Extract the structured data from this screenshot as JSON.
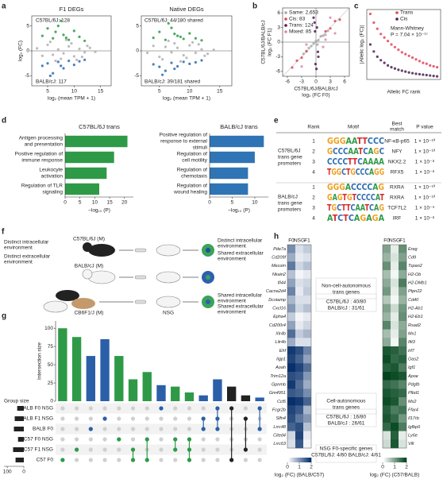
{
  "panel_labels": [
    "a",
    "b",
    "c",
    "d",
    "e",
    "f",
    "g",
    "h"
  ],
  "chart_data": [
    {
      "type": "scatter",
      "title": "F1 DEGs",
      "xlabel": "log₂ (mean TPM + 1)",
      "ylabel": "log₂ (FC)",
      "annotations": [
        "C57BL/6J: 128",
        "BALB/cJ: 117"
      ],
      "xlim": [
        2,
        17
      ],
      "xticks": [
        5,
        10,
        15
      ],
      "ylim": [
        -7,
        7
      ],
      "yticks": [
        -5,
        0,
        5
      ],
      "zero_lines": true,
      "series": [
        {
          "color": "#b0b0b0",
          "x": [
            3,
            4,
            5,
            6,
            7,
            8,
            9,
            10,
            11,
            12,
            13,
            14,
            5.5,
            7.5,
            9.5,
            11.5,
            6.5,
            8.5,
            10.5,
            12.5
          ],
          "values": [
            0.5,
            -1,
            1.2,
            -0.8,
            0.3,
            -0.5,
            0.9,
            -1.1,
            0.4,
            -0.3,
            0.6,
            -0.2,
            1.8,
            -1.6,
            1.5,
            -1.2,
            -2,
            2.2,
            -1.8,
            1
          ]
        },
        {
          "color": "#2e9a47",
          "x": [
            4,
            5,
            6,
            7,
            8,
            9,
            10,
            11,
            12,
            6.5,
            8.5,
            7.5
          ],
          "values": [
            3,
            4.5,
            2.5,
            5,
            3.2,
            2.2,
            4,
            2.8,
            2,
            3.8,
            2.6,
            6
          ]
        },
        {
          "color": "#2b6cb0",
          "x": [
            4,
            5,
            6,
            7,
            8,
            9,
            10,
            11,
            12,
            5.5,
            7.5
          ],
          "values": [
            -3,
            -2.5,
            -4.5,
            -2.2,
            -3.5,
            -2,
            -2.8,
            -2.1,
            -1.8,
            -5,
            -3
          ]
        }
      ]
    },
    {
      "type": "scatter",
      "title": "Native DEGs",
      "xlabel": "log₂ (mean TPM + 1)",
      "annotations": [
        "C57BL/6J: 44/180 shared",
        "BALB/cJ: 39/181 shared"
      ],
      "xlim": [
        2,
        17
      ],
      "xticks": [
        5,
        10,
        15
      ],
      "ylim": [
        -7,
        7
      ],
      "yticks": [
        -5,
        0,
        5
      ],
      "zero_lines": true,
      "series": [
        {
          "color": "#b0b0b0",
          "x": [
            3,
            4,
            5,
            6,
            7,
            8,
            9,
            10,
            11,
            12,
            13,
            14,
            5.5,
            7.5,
            9.5,
            11.5,
            6.5,
            8.5,
            10.5,
            12.5
          ],
          "values": [
            -0.4,
            1,
            -1.2,
            0.8,
            -0.3,
            0.6,
            -0.9,
            1.1,
            -0.4,
            0.3,
            -0.6,
            0.2,
            -1.7,
            1.5,
            -1.4,
            1.3,
            2,
            -2.1,
            1.7,
            -1
          ]
        },
        {
          "color": "#2e9a47",
          "x": [
            4,
            5,
            6,
            7,
            8,
            9,
            10,
            11,
            12,
            6.5,
            8.5,
            7.5
          ],
          "values": [
            2.6,
            3.8,
            2.2,
            4.6,
            3,
            2.4,
            3.5,
            2.5,
            2.1,
            5.5,
            2.8,
            3.4
          ]
        },
        {
          "color": "#2b6cb0",
          "x": [
            4,
            5,
            6,
            7,
            8,
            9,
            10,
            11,
            12,
            5.5,
            7.5
          ],
          "values": [
            -2.7,
            -3.2,
            -4,
            -2.4,
            -3.1,
            -2.2,
            -2.6,
            -2.3,
            -1.9,
            -4.8,
            -3.6
          ]
        }
      ]
    },
    {
      "type": "scatter",
      "xlabel": [
        "C57BL/6J/BALB/cJ",
        "log₂ (FC F0)"
      ],
      "ylabel": [
        "C57BL/6J/BALB/cJ",
        "log₂ (FC F1)"
      ],
      "xlim": [
        -7,
        7
      ],
      "xticks": [
        -6,
        -3,
        0,
        3,
        6
      ],
      "ylim": [
        -7,
        7
      ],
      "yticks": [
        -6,
        -3,
        0,
        3,
        6
      ],
      "zero_lines": true,
      "diagonal": true,
      "series": [
        {
          "name": "Same: 2,653",
          "color": "#a8a8a8",
          "x": [
            -1,
            0.5,
            1,
            -0.5,
            2,
            -2,
            0,
            1.5,
            -1.5,
            0.3,
            2.5,
            -2.6
          ],
          "values": [
            -0.8,
            0.4,
            1.2,
            -0.3,
            1.5,
            -1.8,
            0.2,
            1.3,
            -1.2,
            -0.5,
            2.3,
            -2.4
          ]
        },
        {
          "name": "Cis: 83",
          "color": "#e0475b",
          "x": [
            2,
            3,
            4,
            -2,
            -3,
            -4,
            5,
            -5
          ],
          "values": [
            2.2,
            2.8,
            4.3,
            -1.9,
            -3.2,
            -3.8,
            4.6,
            -5.2
          ]
        },
        {
          "name": "Trans: 124",
          "color": "#4b1f4f",
          "x": [
            0.2,
            -0.3,
            0.5,
            -0.1,
            0.4,
            -0.5,
            0.1,
            -0.2
          ],
          "values": [
            3,
            4,
            -3,
            -4.5,
            -2,
            5,
            -5.5,
            2.2
          ]
        },
        {
          "name": "Mixed: 85",
          "color": "#d98aa8",
          "x": [
            2,
            -2,
            3,
            -3,
            1.5,
            4
          ],
          "values": [
            0.5,
            -0.5,
            5,
            -5,
            -1,
            1.8
          ]
        }
      ]
    },
    {
      "type": "scatter",
      "xlabel": "Allelic FC rank",
      "ylabel": "|Allelic log₂ (FC)|",
      "annotations": [
        "Mann-Whitney",
        "P = 7.04 × 10⁻¹⁷"
      ],
      "xlim": [
        0,
        21
      ],
      "ylim": [
        0,
        8
      ],
      "series": [
        {
          "name": "Trans",
          "color": "#e0475b",
          "x": [
            1,
            2,
            3,
            4,
            5,
            6,
            7,
            8,
            9,
            10,
            11,
            12,
            13,
            14,
            15,
            16,
            17,
            18,
            19,
            20
          ],
          "values": [
            7.5,
            6.5,
            5.8,
            5.2,
            4.8,
            4.4,
            4,
            3.7,
            3.4,
            3.1,
            2.9,
            2.7,
            2.5,
            2.3,
            2.1,
            1.9,
            1.8,
            1.6,
            1.5,
            1.4
          ]
        },
        {
          "name": "Cis",
          "color": "#4b1f4f",
          "x": [
            1,
            2,
            3,
            4,
            5,
            6,
            7,
            8,
            9,
            10,
            11,
            12,
            13,
            14,
            15,
            16,
            17,
            18,
            19,
            20
          ],
          "values": [
            4,
            3.2,
            2.6,
            2.2,
            1.9,
            1.6,
            1.4,
            1.25,
            1.1,
            1,
            0.9,
            0.8,
            0.72,
            0.65,
            0.6,
            0.55,
            0.5,
            0.45,
            0.4,
            0.35
          ]
        }
      ]
    },
    {
      "type": "barh",
      "title": "C57BL/6J trans",
      "xlabel": "−log₁₀ (P)",
      "color": "#2e9a47",
      "categories": [
        [
          "Antigen processing",
          "and presentation"
        ],
        [
          "Positive regulation of",
          "immune response"
        ],
        [
          "Leukocyte",
          "activation"
        ],
        [
          "Regulation of TLR",
          "signaling"
        ]
      ],
      "values": [
        21,
        16.5,
        14,
        11.5
      ],
      "xlim": [
        0,
        23
      ],
      "xticks": [
        0,
        5,
        10,
        15,
        20
      ]
    },
    {
      "type": "barh",
      "title": "BALB/cJ trans",
      "xlabel": "−log₁₀ (P)",
      "color": "#2f74b5",
      "categories": [
        [
          "Positive regulation of",
          "response to external",
          "stimuli"
        ],
        [
          "Regulation of",
          "cell motility"
        ],
        [
          "Regulation of",
          "chemotaxis"
        ],
        [
          "Regulation of",
          "wound healing"
        ]
      ],
      "values": [
        12,
        10,
        8.5,
        8.5
      ],
      "xlim": [
        0,
        13
      ],
      "xticks": [
        0,
        5,
        10
      ]
    },
    {
      "type": "upset",
      "ylabel": "Intersection size",
      "ylim": [
        0,
        110
      ],
      "yticks": [
        0,
        25,
        50,
        75,
        100
      ],
      "values": [
        100,
        88,
        62,
        85,
        62,
        30,
        40,
        22,
        20,
        12,
        8,
        30,
        20,
        8,
        5
      ],
      "colors": [
        "#2e9a47",
        "#2e9a47",
        "#2b5fa8",
        "#2b5fa8",
        "#2e9a47",
        "#2e9a47",
        "#2e9a47",
        "#2b5fa8",
        "#2e9a47",
        "#2e9a47",
        "#2b5fa8",
        "#2b5fa8",
        "#222222",
        "#222222",
        "#2b5fa8"
      ],
      "members": [
        [
          5
        ],
        [
          4
        ],
        [
          2
        ],
        [
          1
        ],
        [
          3
        ],
        [
          4,
          5
        ],
        [
          3,
          5
        ],
        [
          0
        ],
        [
          3,
          4
        ],
        [
          3,
          4,
          5
        ],
        [
          1,
          2
        ],
        [
          0,
          1,
          2
        ],
        [
          0,
          5
        ],
        [
          1,
          4
        ],
        [
          0,
          2
        ]
      ],
      "sets": [
        "BALB F0 NSG",
        "BALB F1 NSG",
        "BALB F0",
        "C57 F0 NSG",
        "C57 F1 NSG",
        "C57 F0"
      ],
      "group_label": "Group size",
      "group_sizes": [
        40,
        55,
        60,
        35,
        65,
        50
      ],
      "group_xlim": [
        120,
        0
      ],
      "group_xticks": [
        100,
        0
      ]
    },
    {
      "type": "heatmap",
      "columns": [
        "F0",
        "NSG",
        "F1"
      ],
      "xlabel": "log₂ (FC) (BALB/C57)",
      "colormap": [
        "#ffffff",
        "#08306b"
      ],
      "clim": [
        0,
        2
      ],
      "cticks": [
        0,
        1,
        2
      ],
      "annotations": [
        [
          "Non-cell-autonomous",
          "trans genes"
        ],
        [
          "C57BL/6J : 40/80",
          "BALB/cJ : 31/61"
        ],
        [
          "Cell-autonomous",
          "trans genes"
        ],
        [
          "C57BL/6J : 16/80",
          "BALB/cJ : 26/61"
        ],
        [
          "NSG F0-specific genes",
          "C57BL/6J: 4/60 BALB/cJ: 4/61"
        ]
      ],
      "rows": [
        "Pde7a",
        "Cd209f",
        "Mecom",
        "Nkain2",
        "Ifi44",
        "Cacna2d4",
        "Dcstamp",
        "Cxcl16",
        "Epha4",
        "Cd200r4",
        "Xlr4b",
        "Lilr4b",
        "Ehf",
        "Iigp1",
        "Aoah",
        "Trim12a",
        "Gpnmb",
        "Gm4951",
        "Ccl5",
        "Fcgr2b",
        "Slfn4",
        "Lrrc48",
        "Cited4",
        "Lrrc63"
      ],
      "values": [
        [
          1.1,
          0.3,
          0.5
        ],
        [
          0.8,
          0.2,
          0.3
        ],
        [
          1.3,
          0.4,
          0.6
        ],
        [
          0.6,
          0.1,
          0.2
        ],
        [
          0.9,
          0.3,
          0.4
        ],
        [
          1.2,
          0.2,
          0.5
        ],
        [
          0.7,
          0.3,
          0.3
        ],
        [
          1,
          0.4,
          0.6
        ],
        [
          0.5,
          0.1,
          0.2
        ],
        [
          0.9,
          0.2,
          0.4
        ],
        [
          1.4,
          0.5,
          0.7
        ],
        [
          0.8,
          0.3,
          0.3
        ],
        [
          1.9,
          1.7,
          1.2
        ],
        [
          1.8,
          1.5,
          0.9
        ],
        [
          2,
          1.8,
          1.4
        ],
        [
          1.7,
          1.6,
          1
        ],
        [
          1.9,
          1.4,
          0.8
        ],
        [
          1.6,
          1.5,
          1.1
        ],
        [
          2,
          1.9,
          1.5
        ],
        [
          1.8,
          1.6,
          0.7
        ],
        [
          1.7,
          1.3,
          1
        ],
        [
          1.5,
          1.7,
          0.6
        ],
        [
          0.4,
          1.8,
          0.2
        ],
        [
          0.3,
          1.6,
          0.1
        ]
      ]
    },
    {
      "type": "heatmap",
      "columns": [
        "F0",
        "NSG",
        "F1"
      ],
      "xlabel": "log₂ (FC) (C57/BALB)",
      "colormap": [
        "#ffffff",
        "#00441b"
      ],
      "clim": [
        0,
        2
      ],
      "cticks": [
        0,
        1,
        2
      ],
      "rows": [
        "Ereg",
        "Cd9",
        "Tspan2",
        "H2-Ob",
        "H2-DMb1",
        "Ptpn22",
        "Cd40",
        "H2-Ab1",
        "H2-Eb1",
        "Rsad2",
        "Mx1",
        "Ifit3",
        "Irf7",
        "Oas2",
        "Igf1",
        "Apoe",
        "Pdgfb",
        "Plbd1",
        "Mx2",
        "Ffar4",
        "Il17rb",
        "Igfbp6",
        "Ly6e",
        "Vill"
      ],
      "values": [
        [
          1,
          0.2,
          1.2
        ],
        [
          0.8,
          0.3,
          1
        ],
        [
          1.2,
          0.2,
          1.3
        ],
        [
          0.7,
          0.1,
          0.9
        ],
        [
          0.9,
          0.3,
          1.4
        ],
        [
          1.1,
          0.2,
          1
        ],
        [
          0.6,
          0.1,
          0.8
        ],
        [
          1,
          0.4,
          1.1
        ],
        [
          0.8,
          0.2,
          1.2
        ],
        [
          1.3,
          0.3,
          0.9
        ],
        [
          0.7,
          0.2,
          1
        ],
        [
          0.9,
          0.1,
          1.3
        ],
        [
          1.8,
          1.7,
          1.5
        ],
        [
          1.9,
          1.6,
          1.7
        ],
        [
          1.7,
          1.8,
          1.4
        ],
        [
          2,
          1.9,
          1.8
        ],
        [
          1.6,
          1.5,
          1.3
        ],
        [
          1.8,
          1.7,
          1.6
        ],
        [
          1.9,
          1.8,
          1.2
        ],
        [
          1.7,
          1.4,
          1.5
        ],
        [
          1.8,
          1.6,
          1.1
        ],
        [
          1.6,
          1.9,
          1.4
        ],
        [
          0.3,
          1.7,
          0.2
        ],
        [
          0.4,
          1.8,
          0.3
        ]
      ]
    }
  ],
  "motif_table": {
    "headers": [
      "Rank",
      "Motif",
      [
        "Best",
        "match"
      ],
      "P value"
    ],
    "letter_colors": {
      "A": "#2e9a47",
      "C": "#2b6cb0",
      "G": "#f0a020",
      "T": "#d62728"
    },
    "groups": [
      {
        "label": [
          "C57BL/6J",
          "trans gene",
          "promoters"
        ],
        "rows": [
          {
            "rank": 1,
            "motif": "GGGAATTCCC",
            "match": "NF-κB-p65",
            "p": "1 × 10⁻¹⁰"
          },
          {
            "rank": 2,
            "motif": "GCCCAATCAGC",
            "match": "NFY",
            "p": "1 × 10⁻¹⁰"
          },
          {
            "rank": 3,
            "motif": "CCCCTTCAAAA",
            "match": "NKX2.2",
            "p": "1 × 10⁻⁸"
          },
          {
            "rank": 4,
            "motif": "TGGCTGCCCAGG",
            "match": "RFX5",
            "p": "1 × 10⁻⁸"
          }
        ]
      },
      {
        "label": [
          "BALB/cJ",
          "trans gene",
          "promoters"
        ],
        "rows": [
          {
            "rank": 1,
            "motif": "GGGACCCCAG",
            "match": "RXRA",
            "p": "1 × 10⁻¹⁰"
          },
          {
            "rank": 2,
            "motif": "GAGTGTCCCCAT",
            "match": "RXRA",
            "p": "1 × 10⁻¹⁰"
          },
          {
            "rank": 3,
            "motif": "TGCTTCAATCAG",
            "match": "TCF7L2",
            "p": "1 × 10⁻⁹"
          },
          {
            "rank": 4,
            "motif": "ATCTCAGAGA",
            "match": "IRF",
            "p": "1 × 10⁻⁸"
          }
        ]
      }
    ]
  },
  "diagram_f": {
    "left": [
      [
        "Distinct intracellular",
        "environment"
      ],
      [
        "Distinct extracellular",
        "environment"
      ]
    ],
    "mice": [
      "C57BL/6J (M)",
      "BALB/cJ (M)",
      "CB6F1/J (M)"
    ],
    "recipient": "NSG",
    "right": [
      [
        "Distinct intracellular",
        "environment"
      ],
      [
        "Shared extracellular",
        "environment"
      ],
      [
        "Shared intracellular",
        "environment"
      ],
      [
        "Shared extracellular",
        "environment"
      ]
    ]
  }
}
